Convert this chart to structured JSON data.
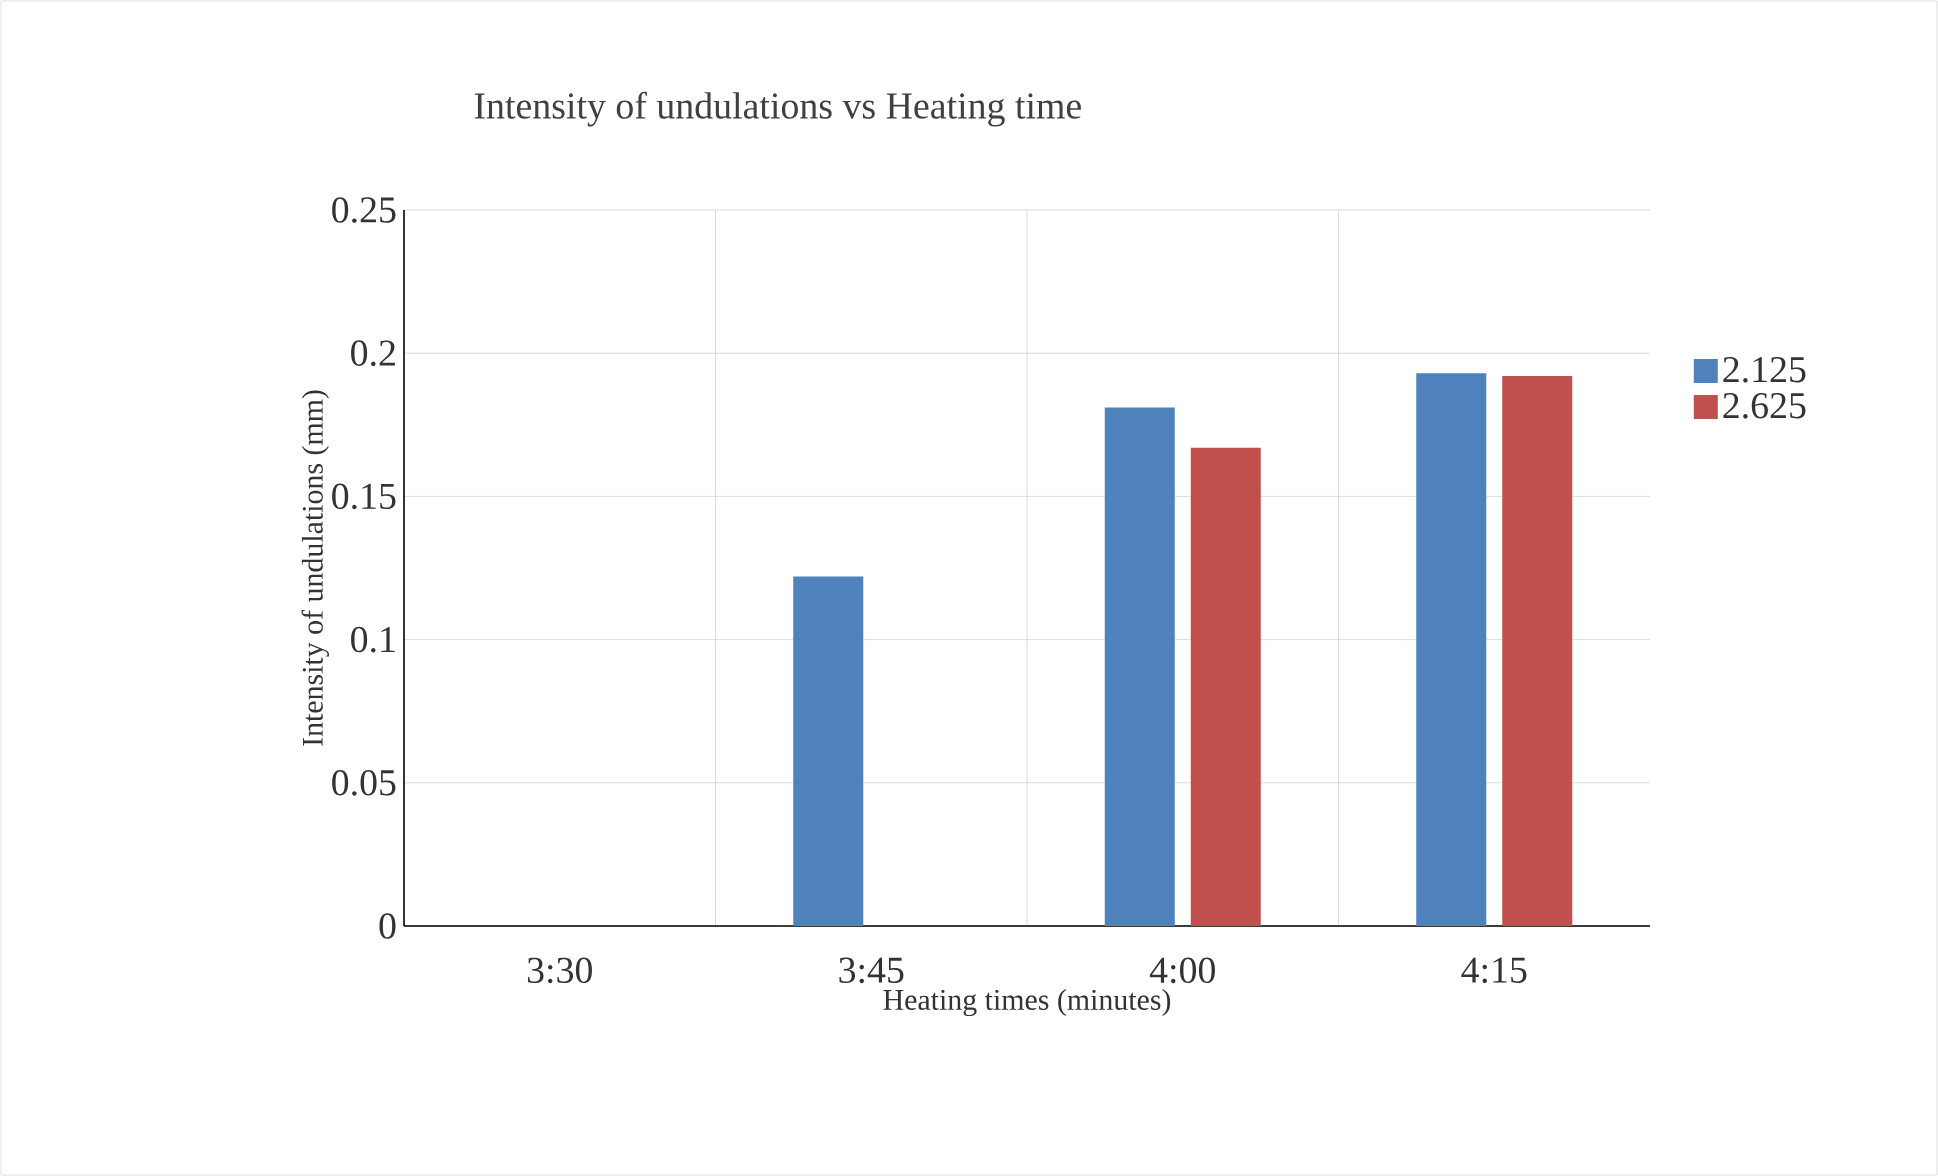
{
  "chart_data": {
    "type": "bar",
    "title": "Intensity of undulations vs Heating time",
    "xlabel": "Heating times (minutes)",
    "ylabel": "Intensity of undulations (mm)",
    "categories": [
      "3:30",
      "3:45",
      "4:00",
      "4:15"
    ],
    "series": [
      {
        "name": "2.125",
        "color": "#4f81bd",
        "values": [
          0,
          0.122,
          0.181,
          0.193
        ]
      },
      {
        "name": "2.625",
        "color": "#c0504d",
        "values": [
          0,
          0,
          0.167,
          0.192
        ]
      }
    ],
    "ylim": [
      0,
      0.25
    ],
    "yticks": [
      0,
      0.05,
      0.1,
      0.15,
      0.2,
      0.25
    ],
    "grid": true,
    "legend": "right"
  }
}
